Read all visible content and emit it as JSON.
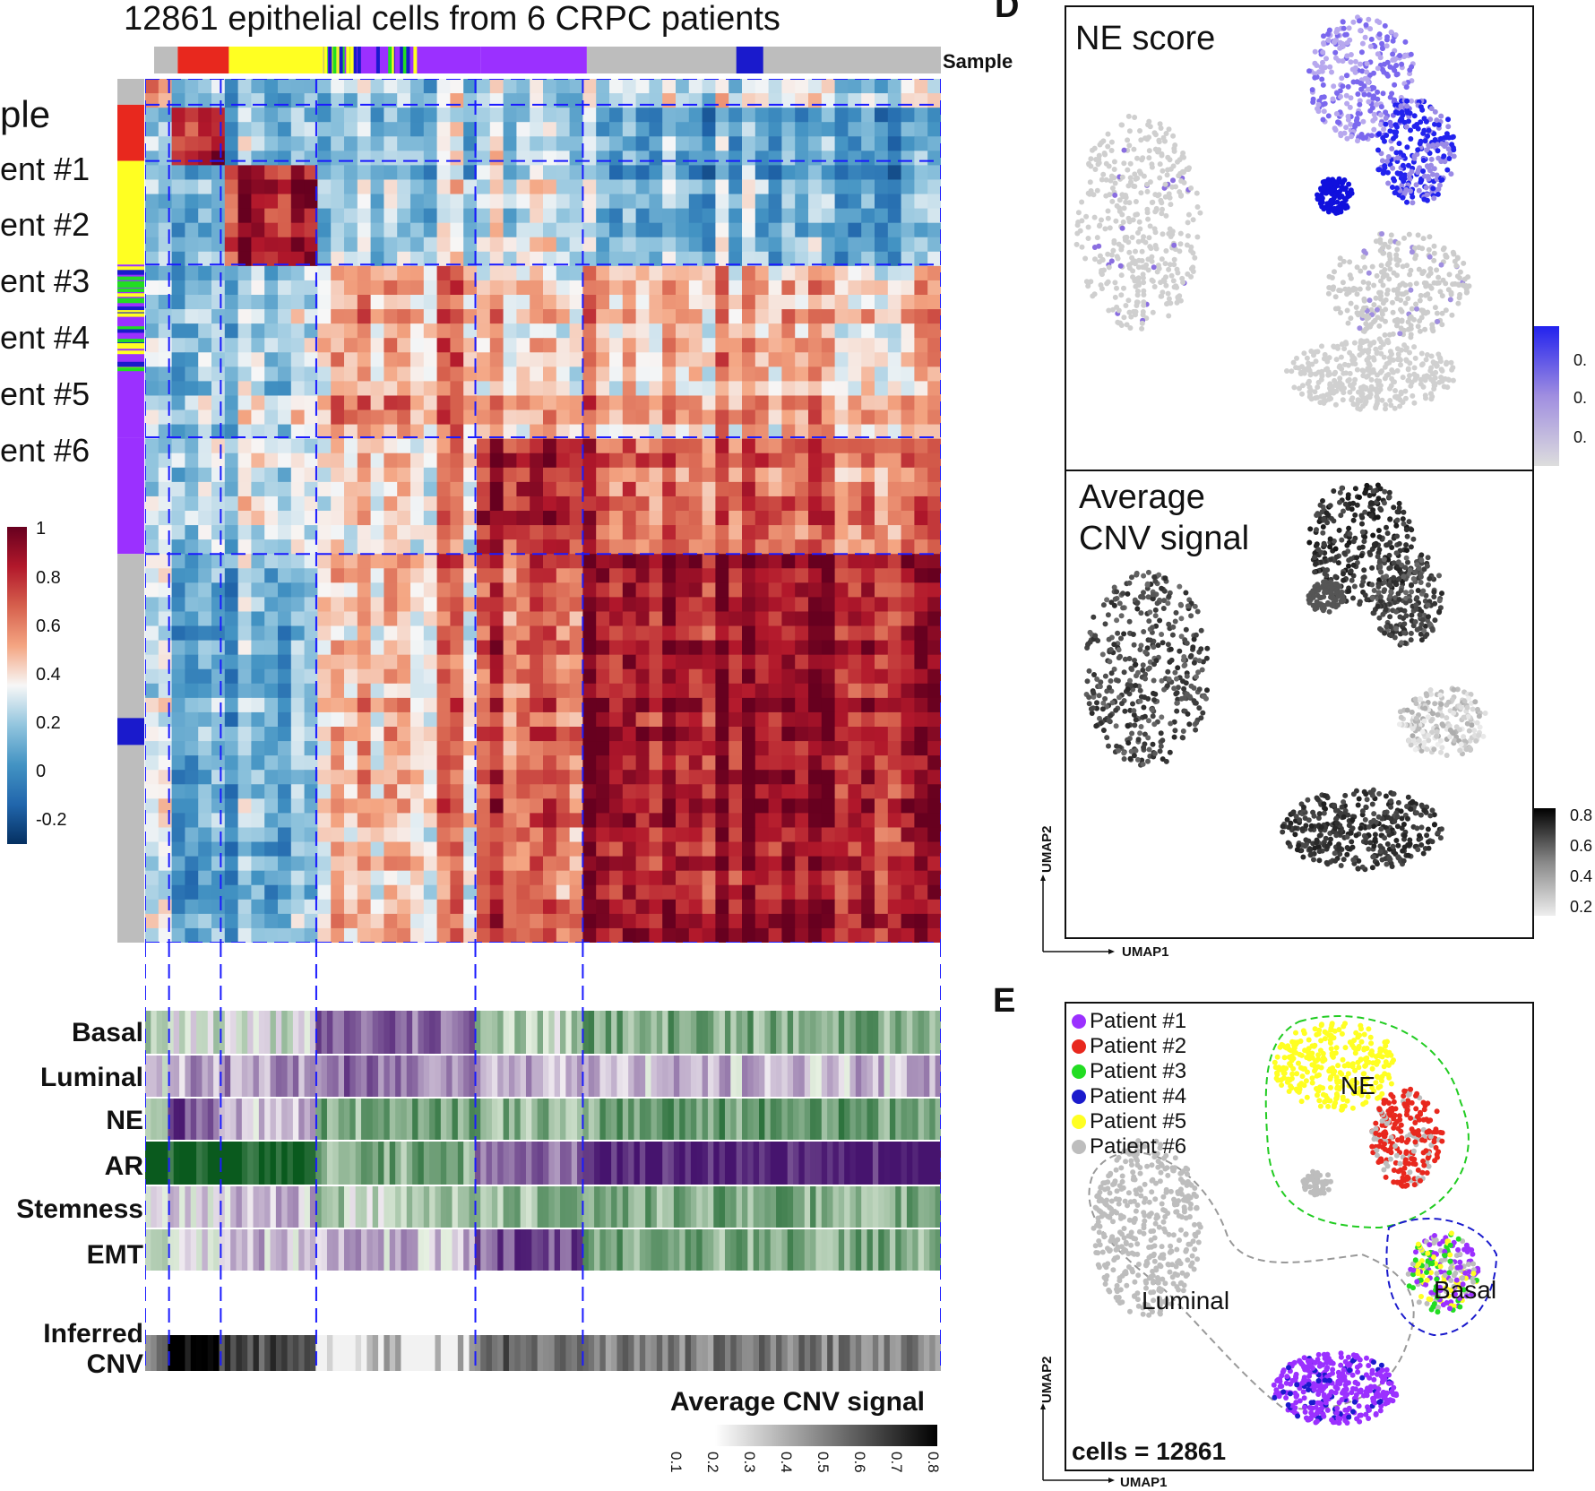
{
  "heatmap": {
    "title": "12861 epithelial cells from 6 CRPC patients",
    "sample_label": "Sample",
    "left_title": "ple",
    "patient_labels": [
      "ent #1",
      "ent #2",
      "ent #3",
      "ent #4",
      "ent #5",
      "ent #6"
    ],
    "colorbar_ticks": [
      "1",
      "0.8",
      "0.6",
      "0.4",
      "0.2",
      "0",
      "-0.2"
    ],
    "colors": {
      "high": "#b2182b",
      "mid": "#f7f7f7",
      "low": "#2166ac",
      "grid": "#1a1aff"
    }
  },
  "annotation": {
    "rows": [
      "Basal",
      "Luminal",
      "NE",
      "AR",
      "Stemness",
      "EMT"
    ],
    "cnv_label_line1": "Inferred",
    "cnv_label_line2": "CNV",
    "cnv_colorbar_title": "Average CNV signal",
    "cnv_colorbar_ticks": [
      "0.1",
      "0.2",
      "0.3",
      "0.4",
      "0.5",
      "0.6",
      "0.7",
      "0.8"
    ]
  },
  "panel_d": {
    "letter": "D",
    "top_title": "NE score",
    "top_colorbar_ticks": [
      "0.",
      "0.",
      "0."
    ],
    "bottom_title_line1": "Average",
    "bottom_title_line2": "CNV signal",
    "bottom_colorbar_ticks": [
      "0.8",
      "0.6",
      "0.4",
      "0.2"
    ],
    "xaxis": "UMAP1",
    "yaxis": "UMAP2"
  },
  "panel_e": {
    "letter": "E",
    "legend": [
      {
        "label": "Patient #1",
        "color": "#9b30ff"
      },
      {
        "label": "Patient #2",
        "color": "#e8281e"
      },
      {
        "label": "Patient #3",
        "color": "#22dd22"
      },
      {
        "label": "Patient #4",
        "color": "#1a1acc"
      },
      {
        "label": "Patient #5",
        "color": "#ffff22"
      },
      {
        "label": "Patient #6",
        "color": "#bdbdbd"
      }
    ],
    "clusters": {
      "ne": "NE",
      "luminal": "Luminal",
      "basal": "Basal"
    },
    "cells_text": "cells = 12861",
    "xaxis": "UMAP1",
    "yaxis": "UMAP2"
  },
  "chart_data": [
    {
      "type": "heatmap",
      "title": "12861 epithelial cells from 6 CRPC patients",
      "colorbar": {
        "min": -0.2,
        "max": 1,
        "ticks": [
          1,
          0.8,
          0.6,
          0.4,
          0.2,
          0,
          -0.2
        ]
      },
      "block_boundaries": [
        0.03,
        0.095,
        0.215,
        0.415,
        0.55,
        1.0
      ]
    },
    {
      "type": "heatmap",
      "rows": [
        "Basal",
        "Luminal",
        "NE",
        "AR",
        "Stemness",
        "EMT",
        "Inferred CNV"
      ],
      "cnv_colorbar": {
        "min": 0.1,
        "max": 0.8
      }
    },
    {
      "type": "scatter",
      "title": "NE score",
      "xlabel": "UMAP1",
      "ylabel": "UMAP2"
    },
    {
      "type": "scatter",
      "title": "Average CNV signal",
      "xlabel": "UMAP1",
      "ylabel": "UMAP2",
      "colorbar_ticks": [
        0.8,
        0.6,
        0.4,
        0.2
      ]
    },
    {
      "type": "scatter",
      "series": [
        {
          "name": "Patient #1"
        },
        {
          "name": "Patient #2"
        },
        {
          "name": "Patient #3"
        },
        {
          "name": "Patient #4"
        },
        {
          "name": "Patient #5"
        },
        {
          "name": "Patient #6"
        }
      ],
      "xlabel": "UMAP1",
      "ylabel": "UMAP2",
      "annotations": [
        "NE",
        "Luminal",
        "Basal",
        "cells = 12861"
      ]
    }
  ]
}
